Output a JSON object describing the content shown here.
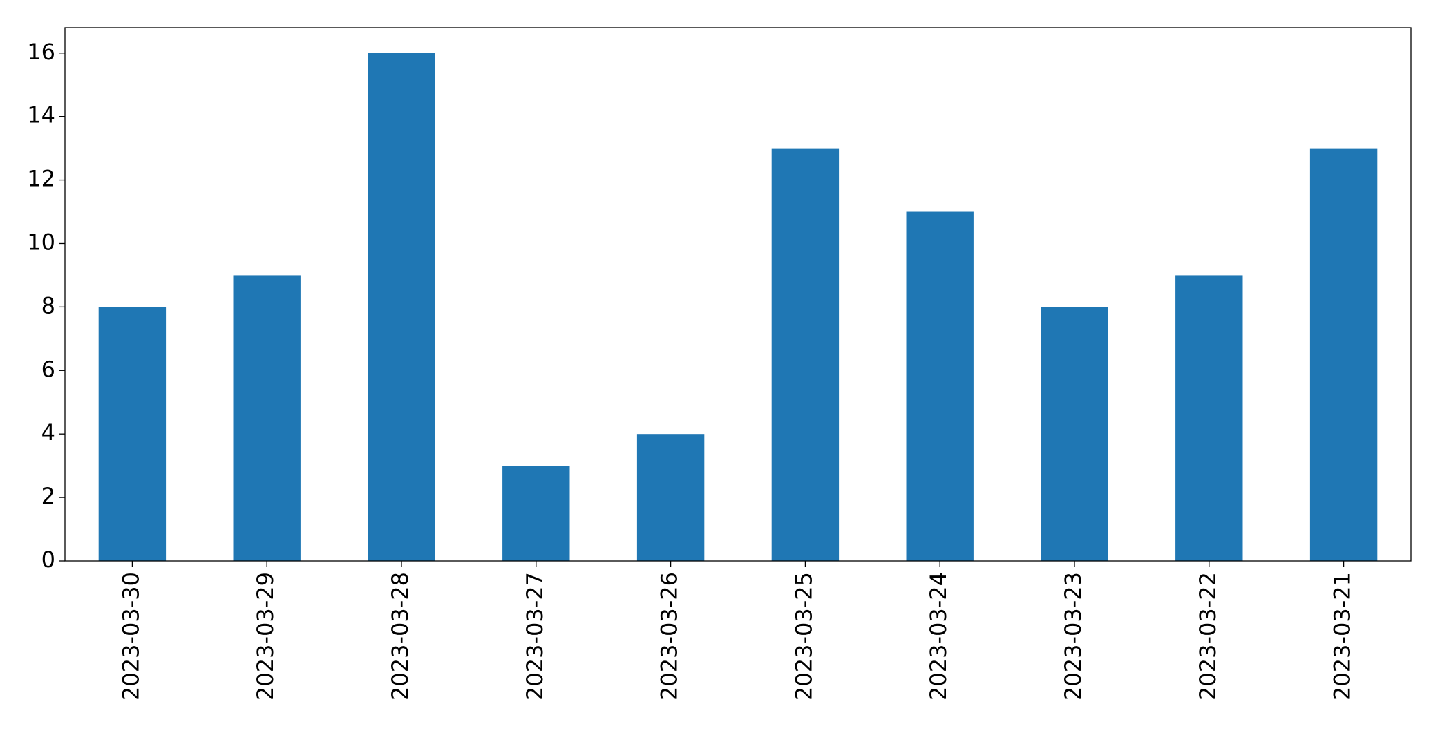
{
  "chart_data": {
    "type": "bar",
    "categories": [
      "2023-03-30",
      "2023-03-29",
      "2023-03-28",
      "2023-03-27",
      "2023-03-26",
      "2023-03-25",
      "2023-03-24",
      "2023-03-23",
      "2023-03-22",
      "2023-03-21"
    ],
    "values": [
      8,
      9,
      16,
      3,
      4,
      13,
      11,
      8,
      9,
      13
    ],
    "color": "#1f77b4",
    "ylim": [
      0,
      16.8
    ],
    "yticks": [
      0,
      2,
      4,
      6,
      8,
      10,
      12,
      14,
      16
    ],
    "grid": false
  }
}
